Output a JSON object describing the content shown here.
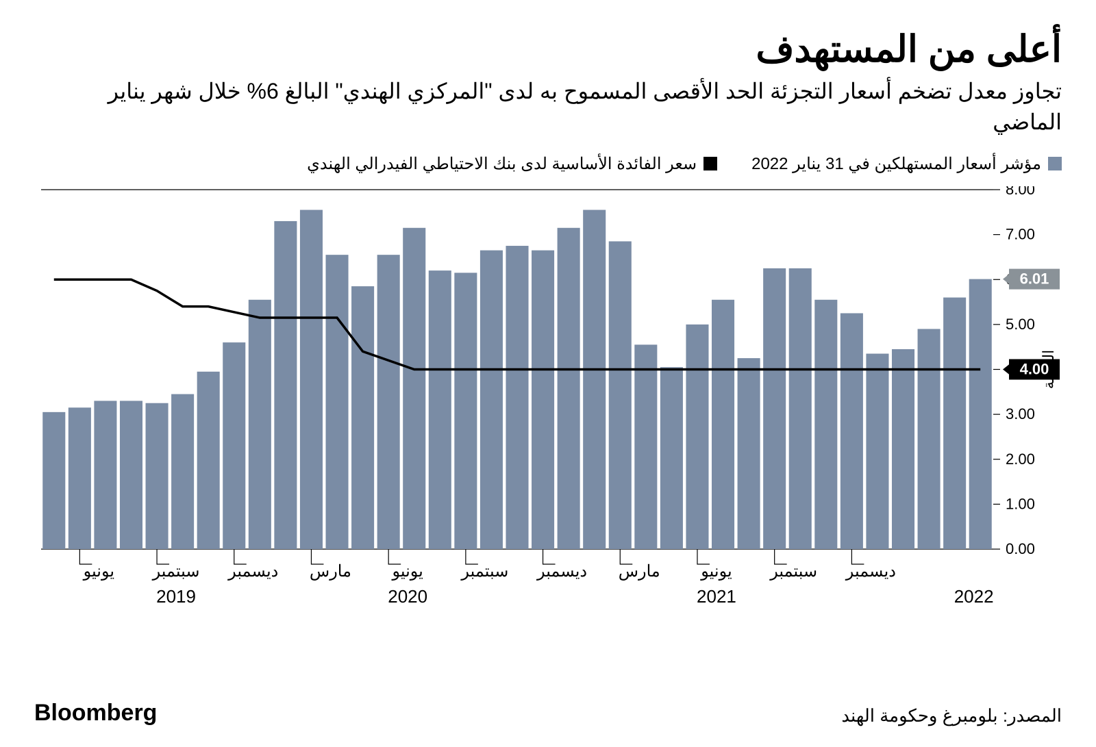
{
  "title": "أعلى من المستهدف",
  "subtitle": "تجاوز معدل تضخم أسعار التجزئة الحد الأقصى المسموح به لدى \"المركزي الهندي\" البالغ 6% خلال شهر يناير الماضي",
  "legend": {
    "bar_label": "مؤشر أسعار المستهلكين في 31 يناير 2022",
    "line_label": "سعر الفائدة الأساسية لدى بنك الاحتياطي الفيدرالي الهندي"
  },
  "y_axis_title": "النسبة",
  "source": "المصدر: بلومبرغ وحكومة الهند",
  "brand": "Bloomberg",
  "chart": {
    "type": "bar+line",
    "bar_color": "#7a8ca5",
    "line_color": "#000000",
    "background_color": "#ffffff",
    "grid_color": "#cccccc",
    "marker_fill": "#000000",
    "marker_grey_fill": "#8a9298",
    "marker_text_color": "#ffffff",
    "ylim": [
      0,
      8
    ],
    "yticks": [
      0.0,
      1.0,
      2.0,
      3.0,
      4.0,
      5.0,
      6.0,
      7.0,
      8.0
    ],
    "bar_values": [
      3.05,
      3.15,
      3.3,
      3.3,
      3.25,
      3.45,
      3.95,
      4.6,
      5.55,
      7.3,
      7.55,
      6.55,
      5.85,
      6.55,
      7.15,
      6.2,
      6.15,
      6.65,
      6.75,
      6.65,
      7.15,
      7.55,
      6.85,
      4.55,
      4.05,
      5.0,
      5.55,
      4.25,
      6.25,
      6.25,
      5.55,
      5.25,
      4.35,
      4.45,
      4.9,
      5.6,
      6.01
    ],
    "line_points": [
      {
        "x": 0,
        "y": 6.0
      },
      {
        "x": 3,
        "y": 6.0
      },
      {
        "x": 4,
        "y": 5.75
      },
      {
        "x": 5,
        "y": 5.4
      },
      {
        "x": 6,
        "y": 5.4
      },
      {
        "x": 8,
        "y": 5.15
      },
      {
        "x": 11,
        "y": 5.15
      },
      {
        "x": 12,
        "y": 4.4
      },
      {
        "x": 14,
        "y": 4.0
      },
      {
        "x": 36,
        "y": 4.0
      }
    ],
    "end_markers": [
      {
        "value": "6.01",
        "y": 6.01,
        "fill": "#8a9298"
      },
      {
        "value": "4.00",
        "y": 4.0,
        "fill": "#000000"
      }
    ],
    "x_month_labels": [
      {
        "idx": 1,
        "text": "يونيو"
      },
      {
        "idx": 4,
        "text": "سبتمبر"
      },
      {
        "idx": 7,
        "text": "ديسمبر"
      },
      {
        "idx": 10,
        "text": "مارس"
      },
      {
        "idx": 13,
        "text": "يونيو"
      },
      {
        "idx": 16,
        "text": "سبتمبر"
      },
      {
        "idx": 19,
        "text": "ديسمبر"
      },
      {
        "idx": 22,
        "text": "مارس"
      },
      {
        "idx": 25,
        "text": "يونيو"
      },
      {
        "idx": 28,
        "text": "سبتمبر"
      },
      {
        "idx": 31,
        "text": "ديسمبر"
      }
    ],
    "x_year_labels": [
      {
        "idx": 4,
        "text": "2019"
      },
      {
        "idx": 13,
        "text": "2020"
      },
      {
        "idx": 25,
        "text": "2021"
      },
      {
        "idx": 35,
        "text": "2022"
      }
    ],
    "line_width": 3.5,
    "bar_gap_ratio": 0.12
  }
}
